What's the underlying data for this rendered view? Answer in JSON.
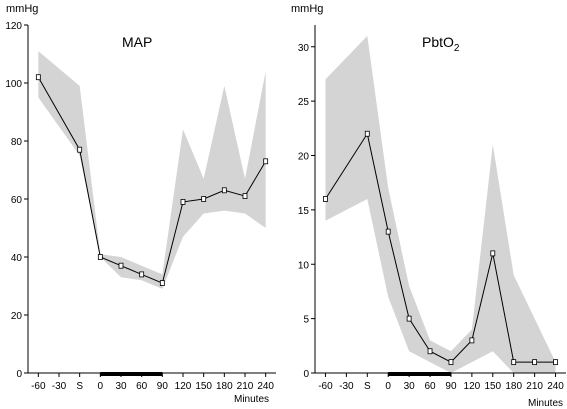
{
  "chart_data": [
    {
      "type": "line",
      "title": "MAP",
      "ylabel": "mmHg",
      "xlabel": "",
      "x_ticks": [
        "-60",
        "-30",
        "S",
        "0",
        "30",
        "60",
        "90",
        "120",
        "150",
        "180",
        "210",
        "240"
      ],
      "ylim": [
        0,
        120
      ],
      "y_ticks": [
        0,
        20,
        40,
        60,
        80,
        100,
        120
      ],
      "grid": false,
      "series": [
        {
          "x": [
            "-60",
            "S",
            "0",
            "30",
            "60",
            "90",
            "120",
            "150",
            "180",
            "210",
            "240"
          ],
          "values": [
            102,
            77,
            40,
            37,
            34,
            31,
            59,
            60,
            63,
            61,
            73
          ],
          "band_upper": [
            111,
            99,
            41,
            40,
            37,
            34,
            84,
            67,
            99,
            67,
            104
          ],
          "band_lower": [
            95,
            75,
            40,
            33,
            32,
            29,
            47,
            55,
            56,
            55,
            50
          ]
        }
      ],
      "marker_bar": {
        "from": "0",
        "to": "90"
      },
      "colors": {
        "band": "#d4d4d4",
        "line": "#000000"
      }
    },
    {
      "type": "line",
      "title": "PbtO",
      "title_subscript": "2",
      "ylabel": "mmHg",
      "xlabel": "Minutes",
      "x_ticks": [
        "-60",
        "-30",
        "S",
        "0",
        "30",
        "60",
        "90",
        "120",
        "150",
        "180",
        "210",
        "240"
      ],
      "ylim": [
        0,
        32
      ],
      "y_ticks": [
        0,
        5,
        10,
        15,
        20,
        25,
        30
      ],
      "grid": false,
      "series": [
        {
          "x": [
            "-60",
            "S",
            "0",
            "30",
            "60",
            "90",
            "120",
            "150",
            "180",
            "210",
            "240"
          ],
          "values": [
            16,
            22,
            13,
            5,
            2,
            1,
            3,
            11,
            1,
            1,
            1
          ],
          "band_upper": [
            27,
            31,
            17,
            8,
            3,
            2,
            4,
            21,
            9,
            5,
            1
          ],
          "band_lower": [
            14,
            16,
            7,
            2,
            1,
            0,
            1,
            2,
            0,
            0,
            0
          ]
        }
      ],
      "marker_bar": {
        "from": "0",
        "to": "90"
      },
      "colors": {
        "band": "#d4d4d4",
        "line": "#000000"
      }
    }
  ],
  "figure": {
    "minutes_label_left": "Minutes"
  }
}
